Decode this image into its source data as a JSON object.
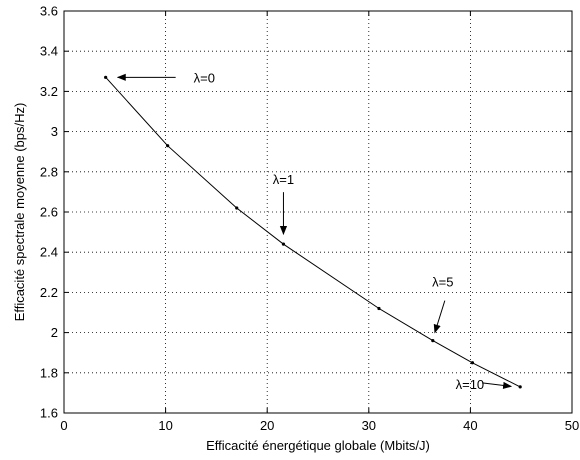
{
  "chart_data": {
    "type": "line",
    "xlabel": "Efficacité énergétique globale (Mbits/J)",
    "ylabel": "Efficacité spectrale moyenne (bps/Hz)",
    "xlim": [
      0,
      50
    ],
    "ylim": [
      1.6,
      3.6
    ],
    "xticks": [
      "0",
      "10",
      "20",
      "30",
      "40",
      "50"
    ],
    "yticks": [
      "1.6",
      "1.8",
      "2",
      "2.2",
      "2.4",
      "2.6",
      "2.8",
      "3",
      "3.2",
      "3.4",
      "3.6"
    ],
    "grid": true,
    "series": [
      {
        "x": [
          4.1,
          10.2,
          17.0,
          21.6,
          31.0,
          36.3,
          40.2,
          44.9
        ],
        "y": [
          3.27,
          2.93,
          2.62,
          2.44,
          2.12,
          1.96,
          1.85,
          1.73
        ],
        "color": "#000000",
        "marker": "dot"
      }
    ],
    "annotations": [
      {
        "text": "λ=0",
        "x": 4.1,
        "y": 3.27,
        "arrow": "left"
      },
      {
        "text": "λ=1",
        "x": 21.6,
        "y": 2.44,
        "arrow": "down"
      },
      {
        "text": "λ=5",
        "x": 36.3,
        "y": 1.96,
        "arrow": "down-left"
      },
      {
        "text": "λ=10",
        "x": 44.9,
        "y": 1.73,
        "arrow": "right"
      }
    ]
  }
}
